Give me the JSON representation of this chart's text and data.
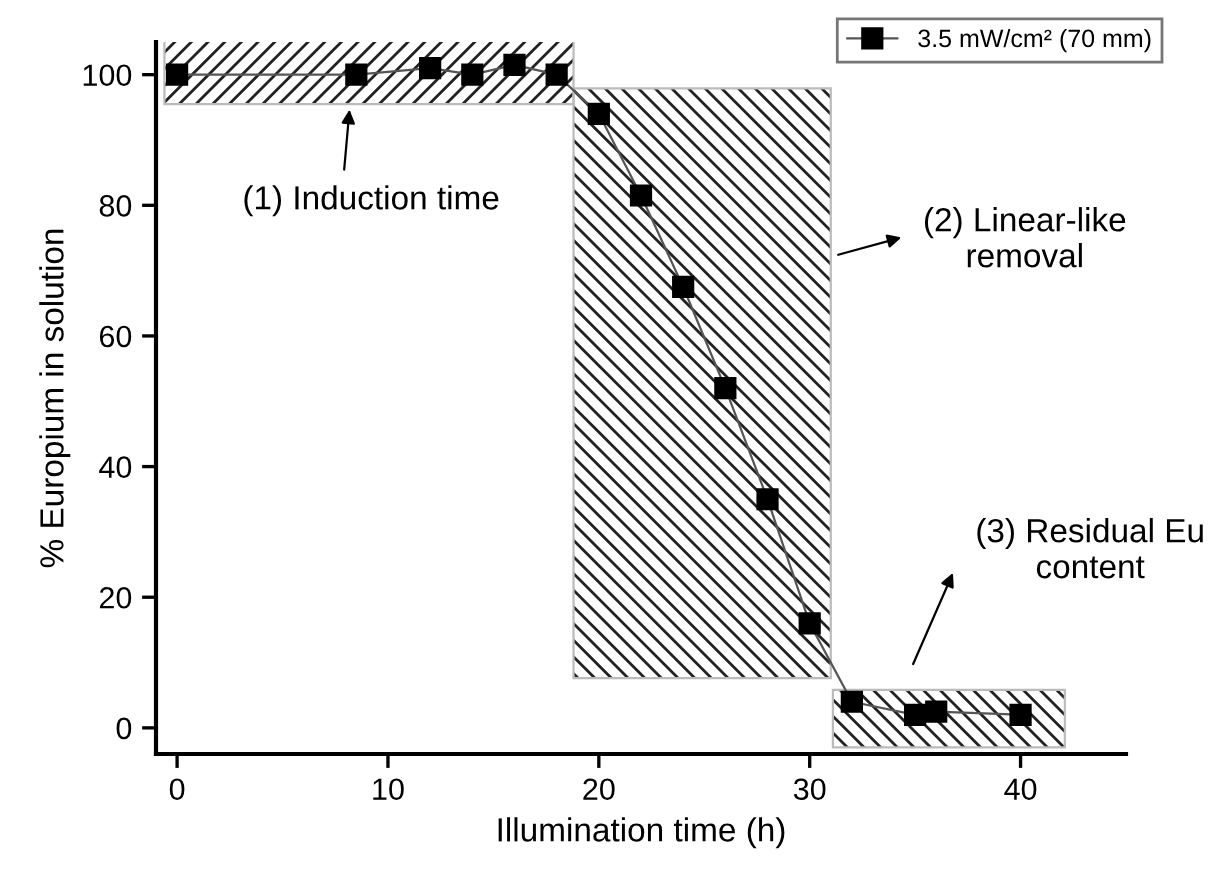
{
  "chart_data": {
    "type": "line",
    "xlabel": "Illumination time (h)",
    "ylabel": "% Europium in solution",
    "x": [
      0,
      8.5,
      12,
      14,
      16,
      18,
      20,
      22,
      24,
      26,
      28,
      30,
      32,
      35,
      36,
      40
    ],
    "series": [
      {
        "name": "3.5 mW/cm² (70 mm)",
        "color": "#000000",
        "values": [
          100,
          100,
          101,
          100,
          101.5,
          100,
          94,
          81.5,
          67.5,
          52,
          35,
          16,
          4,
          2,
          2.5,
          2
        ]
      }
    ],
    "xlim": [
      -1,
      45
    ],
    "xticks": [
      0,
      10,
      20,
      30,
      40
    ],
    "ylim": [
      -4,
      105
    ],
    "yticks": [
      0,
      20,
      40,
      60,
      80,
      100
    ],
    "marker": "square",
    "line_style": "solid",
    "legend": "top right",
    "grid": false,
    "annotations": [
      "(1) Induction time",
      "(2) Linear-like\nremoval",
      "(3) Residual Eu\ncontent"
    ],
    "bands": [
      {
        "axis": "x",
        "from": -0.6,
        "to": 18.8
      },
      {
        "axis": "x",
        "from": 18.8,
        "to": 31.0
      },
      {
        "axis": "x",
        "from": 31.1,
        "to": 42.1
      }
    ]
  }
}
